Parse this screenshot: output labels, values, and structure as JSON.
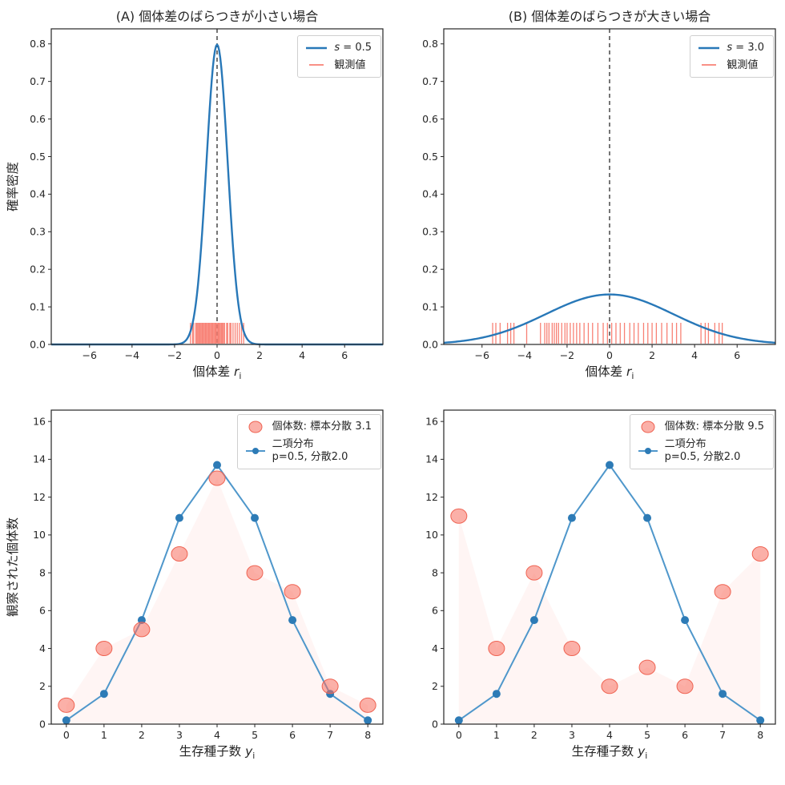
{
  "figure": {
    "background": "#ffffff",
    "frame_color": "#262626",
    "text_color": "#262626"
  },
  "chart_data": [
    {
      "id": "a",
      "type": "density",
      "title": "(A) 個体差のばらつきが小さい場合",
      "xlabel_text": "個体差 ",
      "xlabel_var": "r",
      "xlabel_sub": "i",
      "ylabel": "確率密度",
      "xlim": [
        -7.8,
        7.8
      ],
      "ylim": [
        0,
        0.84
      ],
      "xticks": [
        -6,
        -4,
        -2,
        0,
        2,
        4,
        6
      ],
      "xtick_labels": [
        "−6",
        "−4",
        "−2",
        "0",
        "2",
        "4",
        "6"
      ],
      "yticks": [
        0,
        0.1,
        0.2,
        0.3,
        0.4,
        0.5,
        0.6,
        0.7,
        0.8
      ],
      "ytick_labels": [
        "0.0",
        "0.1",
        "0.2",
        "0.3",
        "0.4",
        "0.5",
        "0.6",
        "0.7",
        "0.8"
      ],
      "gaussian_sd": 0.5,
      "vline_x": 0,
      "curve_color": "#2878b8",
      "rug_color": "#f76c5e",
      "rug_values": [
        -1.25,
        -1.15,
        -1.1,
        -1.0,
        -0.95,
        -0.9,
        -0.85,
        -0.8,
        -0.75,
        -0.7,
        -0.65,
        -0.6,
        -0.55,
        -0.5,
        -0.45,
        -0.4,
        -0.35,
        -0.3,
        -0.25,
        -0.2,
        -0.15,
        -0.1,
        -0.05,
        0.0,
        0.05,
        0.1,
        0.15,
        0.2,
        0.25,
        0.3,
        0.35,
        0.45,
        0.5,
        0.6,
        0.65,
        0.75,
        0.85,
        0.95,
        1.05,
        1.15,
        1.25
      ],
      "legend": {
        "curve_var": "s",
        "curve_rest": " = 0.5",
        "rug_label": "観測値"
      }
    },
    {
      "id": "b",
      "type": "density",
      "title": "(B) 個体差のばらつきが大きい場合",
      "xlabel_text": "個体差 ",
      "xlabel_var": "r",
      "xlabel_sub": "i",
      "xlim": [
        -7.8,
        7.8
      ],
      "ylim": [
        0,
        0.84
      ],
      "xticks": [
        -6,
        -4,
        -2,
        0,
        2,
        4,
        6
      ],
      "xtick_labels": [
        "−6",
        "−4",
        "−2",
        "0",
        "2",
        "4",
        "6"
      ],
      "yticks": [
        0,
        0.1,
        0.2,
        0.3,
        0.4,
        0.5,
        0.6,
        0.7,
        0.8
      ],
      "ytick_labels": [
        "0.0",
        "0.1",
        "0.2",
        "0.3",
        "0.4",
        "0.5",
        "0.6",
        "0.7",
        "0.8"
      ],
      "gaussian_sd": 3.0,
      "vline_x": 0,
      "curve_color": "#2878b8",
      "rug_color": "#f76c5e",
      "rug_values": [
        -5.5,
        -5.35,
        -5.15,
        -4.8,
        -4.65,
        -4.5,
        -3.9,
        -3.25,
        -3.05,
        -2.95,
        -2.85,
        -2.7,
        -2.6,
        -2.5,
        -2.4,
        -2.25,
        -2.1,
        -2.0,
        -1.85,
        -1.7,
        -1.55,
        -1.4,
        -1.2,
        -1.0,
        -0.8,
        -0.55,
        -0.3,
        -0.1,
        0.1,
        0.3,
        0.5,
        0.7,
        0.95,
        1.15,
        1.35,
        1.6,
        1.8,
        2.0,
        2.2,
        2.45,
        2.7,
        2.95,
        3.15,
        3.35,
        4.3,
        4.5,
        4.65,
        4.95,
        5.15,
        5.3
      ],
      "legend": {
        "curve_var": "s",
        "curve_rest": " = 3.0",
        "rug_label": "観測値"
      }
    },
    {
      "id": "c",
      "type": "counts",
      "xlabel_text": "生存種子数 ",
      "xlabel_var": "y",
      "xlabel_sub": "i",
      "ylabel": "観察された個体数",
      "xlim": [
        -0.4,
        8.4
      ],
      "ylim": [
        0,
        16.6
      ],
      "xticks": [
        0,
        1,
        2,
        3,
        4,
        5,
        6,
        7,
        8
      ],
      "xtick_labels": [
        "0",
        "1",
        "2",
        "3",
        "4",
        "5",
        "6",
        "7",
        "8"
      ],
      "yticks": [
        0,
        2,
        4,
        6,
        8,
        10,
        12,
        14,
        16
      ],
      "ytick_labels": [
        "0",
        "2",
        "4",
        "6",
        "8",
        "10",
        "12",
        "14",
        "16"
      ],
      "x": [
        0,
        1,
        2,
        3,
        4,
        5,
        6,
        7,
        8
      ],
      "observed": [
        1,
        4,
        5,
        9,
        13,
        8,
        7,
        2,
        1
      ],
      "binomial": [
        0.2,
        1.6,
        5.5,
        10.9,
        13.7,
        10.9,
        5.5,
        1.6,
        0.2
      ],
      "line_color": "#4f97cb",
      "dot_color": "#2d7bb6",
      "obs_fill": "rgba(248,112,96,0.55)",
      "obs_edge": "#ef6352",
      "obs_bg": "rgba(250,130,110,0.08)",
      "legend": {
        "obs_label": "個体数: 標本分散 3.1",
        "line_label1": "二項分布",
        "line_label2": "p=0.5, 分散2.0"
      }
    },
    {
      "id": "d",
      "type": "counts",
      "xlabel_text": "生存種子数 ",
      "xlabel_var": "y",
      "xlabel_sub": "i",
      "xlim": [
        -0.4,
        8.4
      ],
      "ylim": [
        0,
        16.6
      ],
      "xticks": [
        0,
        1,
        2,
        3,
        4,
        5,
        6,
        7,
        8
      ],
      "xtick_labels": [
        "0",
        "1",
        "2",
        "3",
        "4",
        "5",
        "6",
        "7",
        "8"
      ],
      "yticks": [
        0,
        2,
        4,
        6,
        8,
        10,
        12,
        14,
        16
      ],
      "ytick_labels": [
        "0",
        "2",
        "4",
        "6",
        "8",
        "10",
        "12",
        "14",
        "16"
      ],
      "x": [
        0,
        1,
        2,
        3,
        4,
        5,
        6,
        7,
        8
      ],
      "observed": [
        11,
        4,
        8,
        4,
        2,
        3,
        2,
        7,
        9
      ],
      "binomial": [
        0.2,
        1.6,
        5.5,
        10.9,
        13.7,
        10.9,
        5.5,
        1.6,
        0.2
      ],
      "line_color": "#4f97cb",
      "dot_color": "#2d7bb6",
      "obs_fill": "rgba(248,112,96,0.55)",
      "obs_edge": "#ef6352",
      "obs_bg": "rgba(250,130,110,0.08)",
      "legend": {
        "obs_label": "個体数: 標本分散 9.5",
        "line_label1": "二項分布",
        "line_label2": "p=0.5, 分散2.0"
      }
    }
  ]
}
